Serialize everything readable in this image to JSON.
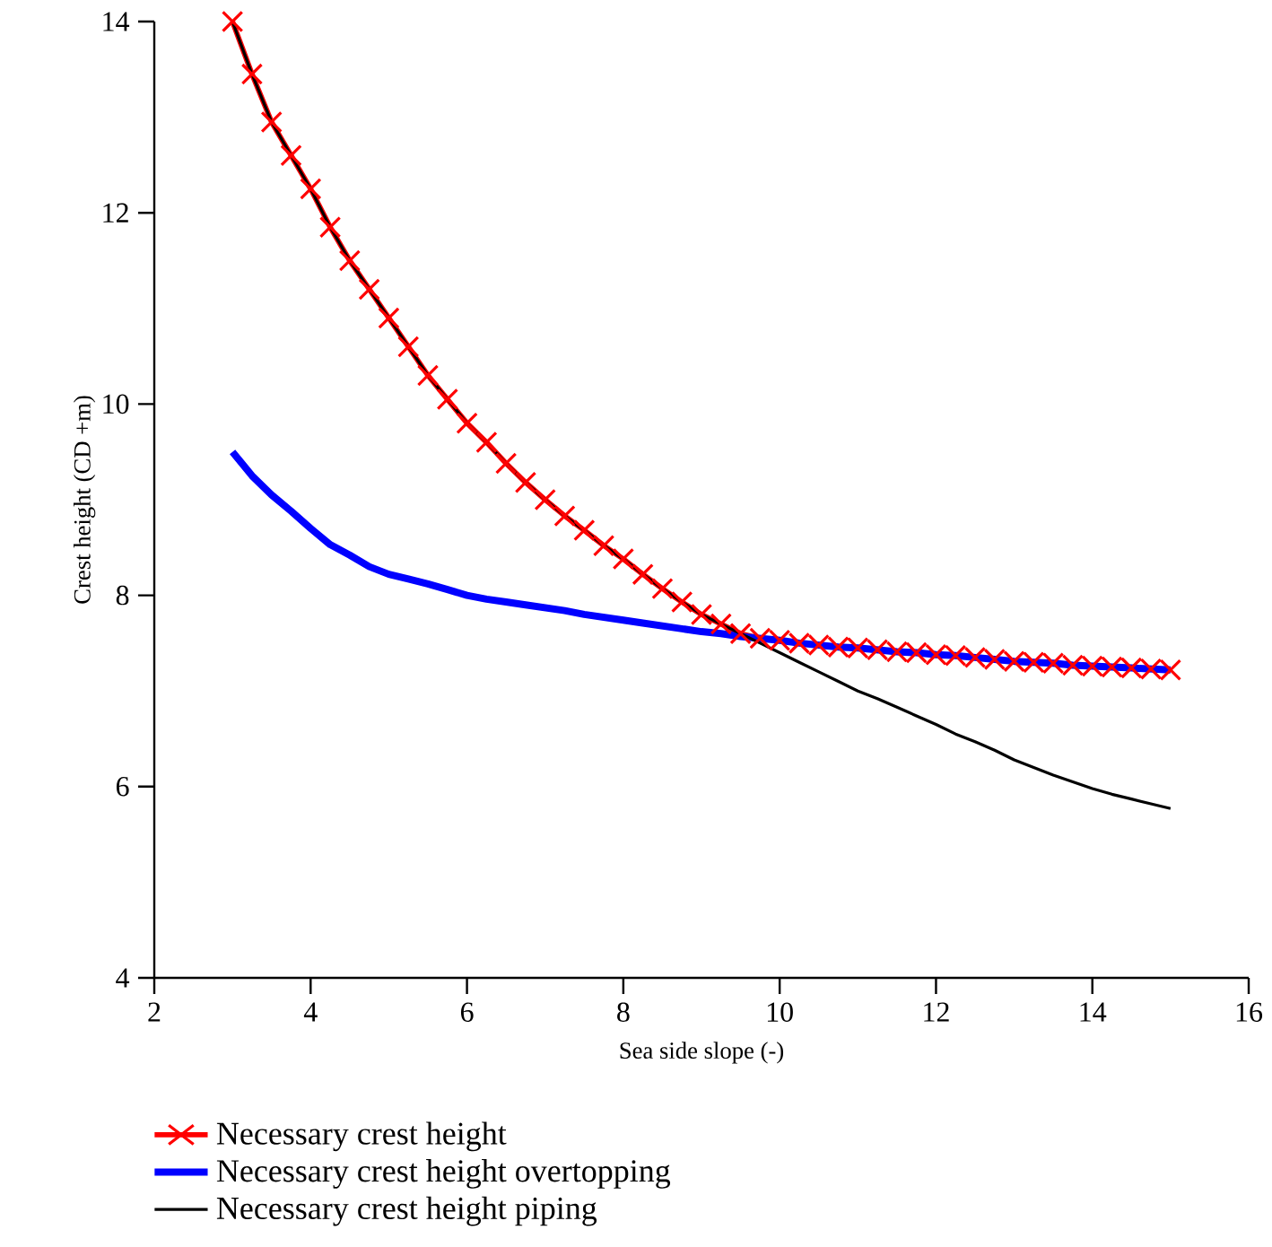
{
  "chart_data": {
    "type": "line",
    "xlabel": "Sea side slope (-)",
    "ylabel": "Crest height (CD +m)",
    "x": [
      3,
      3.25,
      3.5,
      3.75,
      4,
      4.25,
      4.5,
      4.75,
      5,
      5.25,
      5.5,
      5.75,
      6,
      6.25,
      6.5,
      6.75,
      7,
      7.25,
      7.5,
      7.75,
      8,
      8.25,
      8.5,
      8.75,
      9,
      9.25,
      9.5,
      9.75,
      10,
      10.25,
      10.5,
      10.75,
      11,
      11.25,
      11.5,
      11.75,
      12,
      12.25,
      12.5,
      12.75,
      13,
      13.25,
      13.5,
      13.75,
      14,
      14.25,
      14.5,
      14.75,
      15
    ],
    "series": [
      {
        "name": "Necessary crest height",
        "color": "#ff0000",
        "marker": "cross",
        "values": [
          14.0,
          13.45,
          12.95,
          12.6,
          12.25,
          11.85,
          11.5,
          11.2,
          10.9,
          10.6,
          10.3,
          10.05,
          9.8,
          9.6,
          9.38,
          9.18,
          9.0,
          8.83,
          8.68,
          8.52,
          8.38,
          8.22,
          8.07,
          7.93,
          7.8,
          7.7,
          7.6,
          7.55,
          7.53,
          7.5,
          7.48,
          7.46,
          7.45,
          7.43,
          7.41,
          7.4,
          7.38,
          7.37,
          7.35,
          7.33,
          7.31,
          7.3,
          7.29,
          7.27,
          7.26,
          7.25,
          7.24,
          7.23,
          7.22
        ]
      },
      {
        "name": "Necessary crest height overtopping",
        "color": "#0000ff",
        "values": [
          9.5,
          9.25,
          9.05,
          8.88,
          8.7,
          8.53,
          8.42,
          8.3,
          8.22,
          8.17,
          8.12,
          8.06,
          8.0,
          7.96,
          7.93,
          7.9,
          7.87,
          7.84,
          7.8,
          7.77,
          7.74,
          7.71,
          7.68,
          7.65,
          7.62,
          7.6,
          7.57,
          7.55,
          7.53,
          7.5,
          7.48,
          7.46,
          7.45,
          7.43,
          7.41,
          7.4,
          7.38,
          7.37,
          7.35,
          7.33,
          7.31,
          7.3,
          7.29,
          7.27,
          7.26,
          7.25,
          7.24,
          7.23,
          7.22
        ]
      },
      {
        "name": "Necessary crest height piping",
        "color": "#000000",
        "values": [
          14.0,
          13.45,
          12.95,
          12.6,
          12.25,
          11.85,
          11.5,
          11.2,
          10.9,
          10.6,
          10.3,
          10.05,
          9.8,
          9.6,
          9.38,
          9.18,
          9.0,
          8.83,
          8.68,
          8.52,
          8.38,
          8.22,
          8.07,
          7.93,
          7.8,
          7.7,
          7.6,
          7.5,
          7.4,
          7.3,
          7.2,
          7.1,
          7.0,
          6.92,
          6.83,
          6.74,
          6.65,
          6.55,
          6.47,
          6.38,
          6.28,
          6.2,
          6.12,
          6.05,
          5.98,
          5.92,
          5.87,
          5.82,
          5.77
        ]
      }
    ],
    "xlim": [
      2,
      16
    ],
    "ylim": [
      4,
      14
    ],
    "xticks": [
      2,
      4,
      6,
      8,
      10,
      12,
      14,
      16
    ],
    "yticks": [
      4,
      6,
      8,
      10,
      12,
      14
    ],
    "legend": "bottom"
  }
}
